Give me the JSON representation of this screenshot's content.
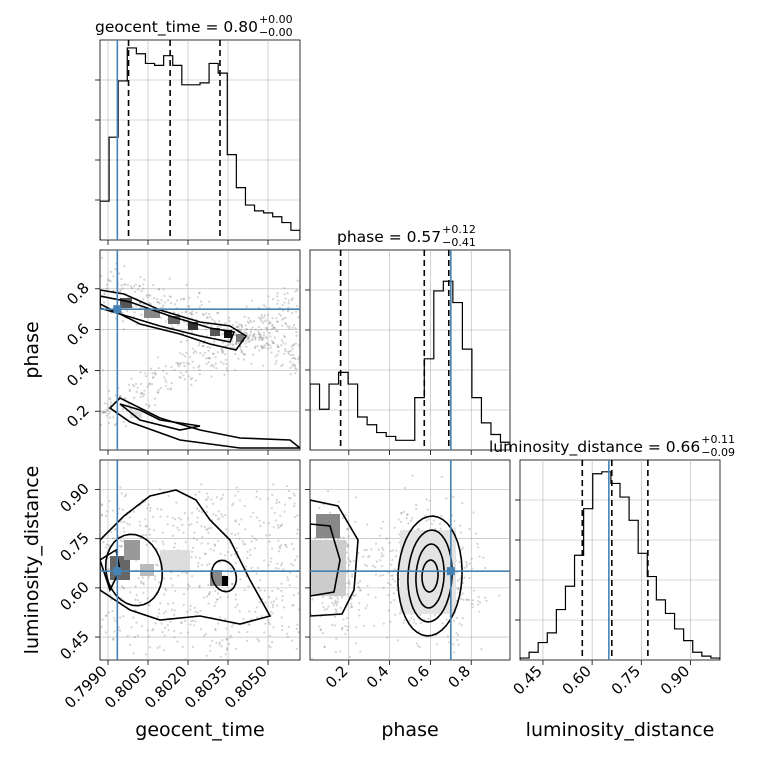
{
  "chart_data": {
    "type": "corner",
    "parameters": [
      "geocent_time",
      "phase",
      "luminosity_distance"
    ],
    "titles": [
      {
        "param": "geocent_time",
        "text": "geocent_time = 0.80",
        "plus": "+0.00",
        "minus": "−0.00"
      },
      {
        "param": "phase",
        "text": "phase = 0.57",
        "plus": "+0.12",
        "minus": "−0.41"
      },
      {
        "param": "luminosity_distance",
        "text": "luminosity_distance = 0.66",
        "plus": "+0.11",
        "minus": "−0.09"
      }
    ],
    "axis_labels": {
      "x": [
        "geocent_time",
        "phase",
        "luminosity_distance"
      ],
      "y": [
        "phase",
        "luminosity_distance"
      ]
    },
    "ranges": {
      "geocent_time": [
        0.7987,
        0.8062
      ],
      "phase": [
        0.01,
        0.99
      ],
      "luminosity_distance": [
        0.38,
        0.99
      ]
    },
    "ticks": {
      "geocent_time": {
        "values": [
          0.799,
          0.8005,
          0.802,
          0.8035,
          0.805
        ],
        "labels": [
          "0.7990",
          "0.8005",
          "0.8020",
          "0.8035",
          "0.8050"
        ]
      },
      "phase": {
        "values": [
          0.2,
          0.4,
          0.6,
          0.8
        ],
        "labels": [
          "0.2",
          "0.4",
          "0.6",
          "0.8"
        ]
      },
      "luminosity_distance": {
        "values": [
          0.45,
          0.6,
          0.75,
          0.9
        ],
        "labels": [
          "0.45",
          "0.60",
          "0.75",
          "0.90"
        ]
      }
    },
    "truths": {
      "geocent_time": 0.79935,
      "phase": 0.7,
      "luminosity_distance": 0.651
    },
    "truth_color": "#4682b4",
    "quantile_lines": {
      "geocent_time": [
        0.79977,
        0.80133,
        0.8032
      ],
      "phase": [
        0.16,
        0.57,
        0.69
      ],
      "luminosity_distance": [
        0.57,
        0.66,
        0.77
      ]
    },
    "histograms": {
      "geocent_time": [
        0.2,
        0.53,
        0.82,
        0.99,
        0.96,
        0.91,
        0.9,
        0.95,
        0.9,
        0.8,
        0.8,
        0.81,
        0.91,
        0.86,
        0.44,
        0.27,
        0.18,
        0.15,
        0.14,
        0.12,
        0.09,
        0.05
      ],
      "phase": [
        0.34,
        0.21,
        0.34,
        0.4,
        0.34,
        0.17,
        0.13,
        0.09,
        0.07,
        0.05,
        0.05,
        0.27,
        0.47,
        0.82,
        0.87,
        0.76,
        0.52,
        0.27,
        0.14,
        0.08,
        0.04
      ],
      "luminosity_distance": [
        0.01,
        0.04,
        0.09,
        0.14,
        0.26,
        0.38,
        0.54,
        0.78,
        0.96,
        0.97,
        0.91,
        0.84,
        0.72,
        0.55,
        0.43,
        0.31,
        0.24,
        0.16,
        0.1,
        0.04,
        0.02,
        0.01
      ]
    },
    "grid": true
  }
}
